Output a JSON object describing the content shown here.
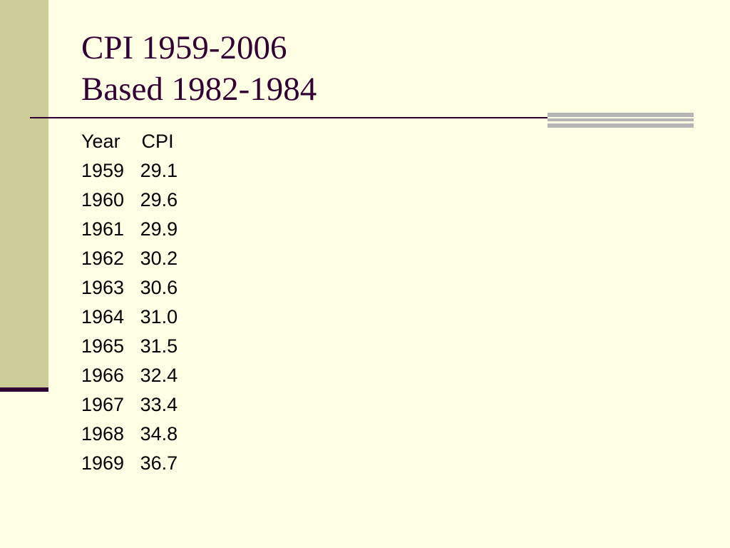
{
  "slide": {
    "title_line1": "CPI 1959-2006",
    "title_line2": "Based 1982-1984",
    "rows": [
      "Year    CPI",
      "1959   29.1",
      "1960   29.6",
      "1961   29.9",
      "1962   30.2",
      "1963   30.6",
      "1964   31.0",
      "1965   31.5",
      "1966   32.4",
      "1967   33.4",
      "1968   34.8",
      "1969   36.7"
    ]
  },
  "colors": {
    "background": "#ffffe6",
    "sidebar": "#cccc99",
    "title_text": "#330033",
    "accent_bars": "#b5b5b5"
  }
}
